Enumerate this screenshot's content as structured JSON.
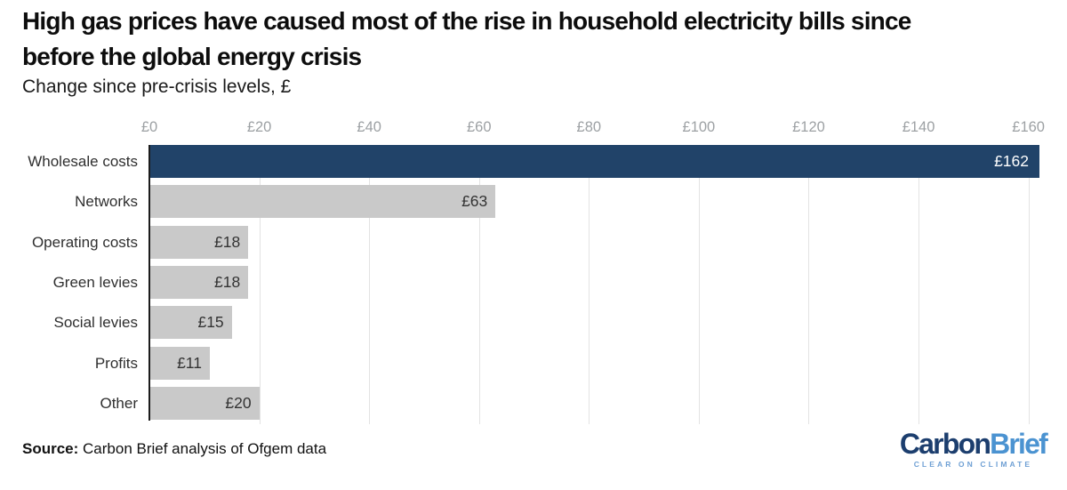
{
  "header": {
    "title_line1": "High gas prices have caused most of the rise in household electricity bills since",
    "title_line2": "before the global energy crisis",
    "subtitle": "Change since pre-crisis levels, £"
  },
  "chart_data": {
    "type": "bar",
    "orientation": "horizontal",
    "title": "High gas prices have caused most of the rise in household electricity bills since before the global energy crisis",
    "subtitle": "Change since pre-crisis levels, £",
    "categories": [
      "Wholesale costs",
      "Networks",
      "Operating costs",
      "Green levies",
      "Social levies",
      "Profits",
      "Other"
    ],
    "values": [
      162,
      63,
      18,
      18,
      15,
      11,
      20
    ],
    "value_labels": [
      "£162",
      "£63",
      "£18",
      "£18",
      "£15",
      "£11",
      "£20"
    ],
    "x_ticks": [
      "£0",
      "£20",
      "£40",
      "£60",
      "£80",
      "£100",
      "£120",
      "£140",
      "£160"
    ],
    "x_tick_values": [
      0,
      20,
      40,
      60,
      80,
      100,
      120,
      140,
      160
    ],
    "xlim": [
      0,
      162
    ],
    "grid": true,
    "legend": false,
    "highlight_index": 0,
    "colors": {
      "highlight_bar": "#214369",
      "default_bar": "#c9c9c9",
      "highlight_value_text": "#ffffff",
      "default_value_text": "#333333",
      "gridline": "#e3e3e3",
      "axis_line": "#1c1c1c",
      "tick_text": "#9da1a4"
    }
  },
  "footer": {
    "source_label": "Source:",
    "source_text": " Carbon Brief analysis of Ofgem data",
    "logo": {
      "part1": "Carbon",
      "part2": "Brief",
      "tagline": "CLEAR ON CLIMATE",
      "color1": "#1c3e6e",
      "color2": "#4b93d1",
      "tagline_color": "#6fa0d4"
    }
  }
}
